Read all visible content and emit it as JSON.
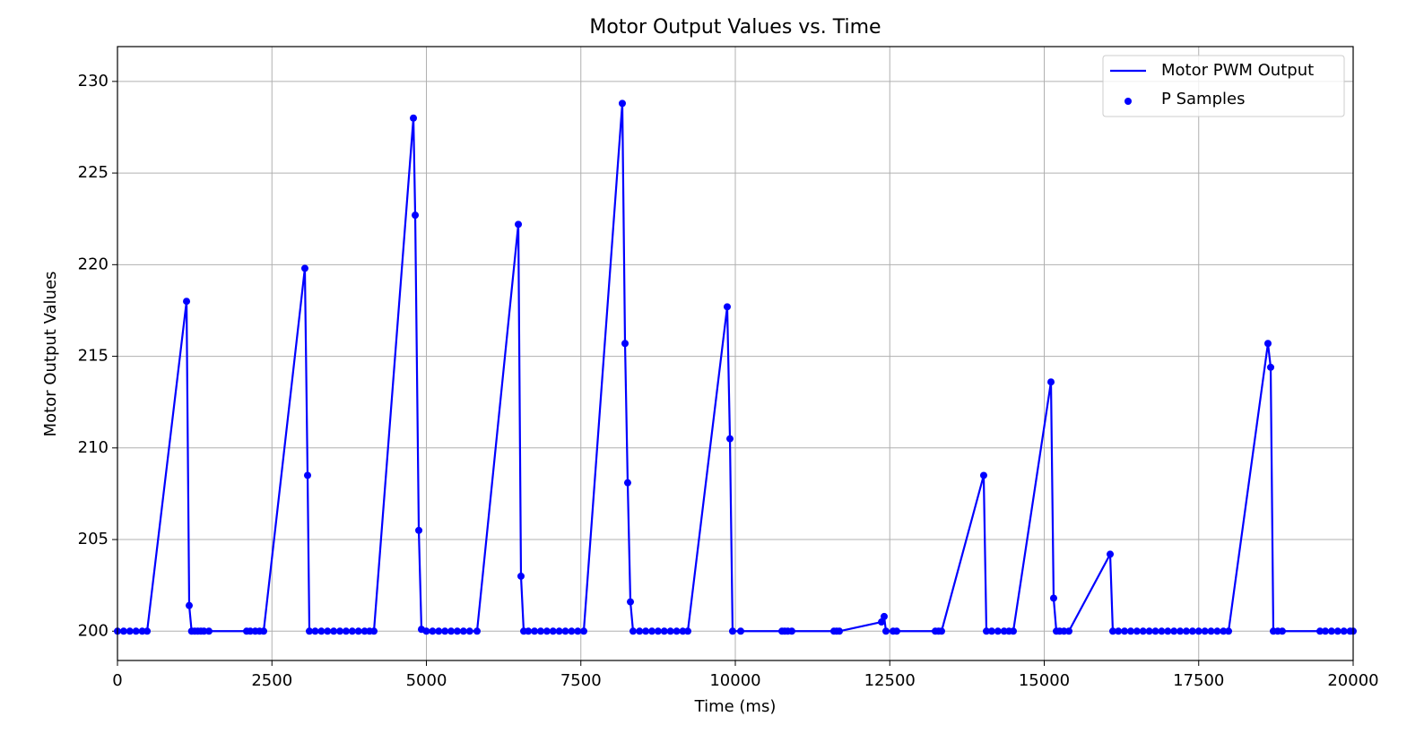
{
  "chart_data": {
    "type": "line",
    "title": "Motor Output Values vs. Time",
    "xlabel": "Time (ms)",
    "ylabel": "Motor Output Values",
    "x": [
      0,
      100,
      200,
      300,
      400,
      480,
      1118,
      1161,
      1200,
      1250,
      1300,
      1350,
      1400,
      1480,
      2090,
      2150,
      2230,
      2300,
      2366,
      3033,
      3077,
      3106,
      3200,
      3300,
      3400,
      3500,
      3600,
      3700,
      3800,
      3900,
      4000,
      4080,
      4151,
      4790,
      4819,
      4877,
      4920,
      5000,
      5100,
      5200,
      5300,
      5400,
      5500,
      5600,
      5700,
      5820,
      6488,
      6531,
      6575,
      6650,
      6750,
      6850,
      6950,
      7050,
      7150,
      7250,
      7350,
      7450,
      7547,
      8171,
      8215,
      8258,
      8302,
      8345,
      8450,
      8550,
      8650,
      8750,
      8850,
      8950,
      9050,
      9150,
      9231,
      9869,
      9913,
      9956,
      10087,
      10755,
      10800,
      10850,
      10914,
      11596,
      11640,
      11684,
      12366,
      12409,
      12438,
      12554,
      12612,
      13237,
      13290,
      13338,
      14020,
      14064,
      14150,
      14250,
      14350,
      14430,
      14499,
      15109,
      15152,
      15196,
      15250,
      15320,
      15399,
      16067,
      16110,
      16200,
      16300,
      16400,
      16500,
      16600,
      16700,
      16800,
      16900,
      17000,
      17100,
      17200,
      17300,
      17400,
      17500,
      17600,
      17700,
      17800,
      17900,
      17983,
      18621,
      18665,
      18708,
      18780,
      18853,
      19463,
      19550,
      19650,
      19750,
      19850,
      19950,
      20000
    ],
    "values": [
      200,
      200,
      200,
      200,
      200,
      200,
      218.0,
      201.4,
      200,
      200,
      200,
      200,
      200,
      200,
      200,
      200,
      200,
      200,
      200,
      219.8,
      208.5,
      200,
      200,
      200,
      200,
      200,
      200,
      200,
      200,
      200,
      200,
      200,
      200,
      228.0,
      222.7,
      205.5,
      200.1,
      200,
      200,
      200,
      200,
      200,
      200,
      200,
      200,
      200,
      222.2,
      203.0,
      200,
      200,
      200,
      200,
      200,
      200,
      200,
      200,
      200,
      200,
      200,
      228.8,
      215.7,
      208.1,
      201.6,
      200,
      200,
      200,
      200,
      200,
      200,
      200,
      200,
      200,
      200,
      217.7,
      210.5,
      200,
      200,
      200,
      200,
      200,
      200,
      200,
      200,
      200,
      200.5,
      200.8,
      200,
      200,
      200,
      200,
      200,
      200,
      208.5,
      200,
      200,
      200,
      200,
      200,
      200,
      213.6,
      201.8,
      200,
      200,
      200,
      200,
      204.2,
      200,
      200,
      200,
      200,
      200,
      200,
      200,
      200,
      200,
      200,
      200,
      200,
      200,
      200,
      200,
      200,
      200,
      200,
      200,
      200,
      215.7,
      214.4,
      200,
      200,
      200,
      200,
      200,
      200,
      200,
      200,
      200,
      200
    ],
    "series": [
      {
        "name": "Motor PWM Output",
        "color": "#0000ff",
        "style": "line"
      },
      {
        "name": "P Samples",
        "color": "#0000ff",
        "style": "scatter"
      }
    ],
    "xlim": [
      0,
      20000
    ],
    "xticks": [
      0,
      2500,
      5000,
      7500,
      10000,
      12500,
      15000,
      17500,
      20000
    ],
    "ylim": [
      198.4,
      231.9
    ],
    "yticks": [
      200,
      205,
      210,
      215,
      220,
      225,
      230
    ],
    "grid": true,
    "legend": "upper right"
  }
}
